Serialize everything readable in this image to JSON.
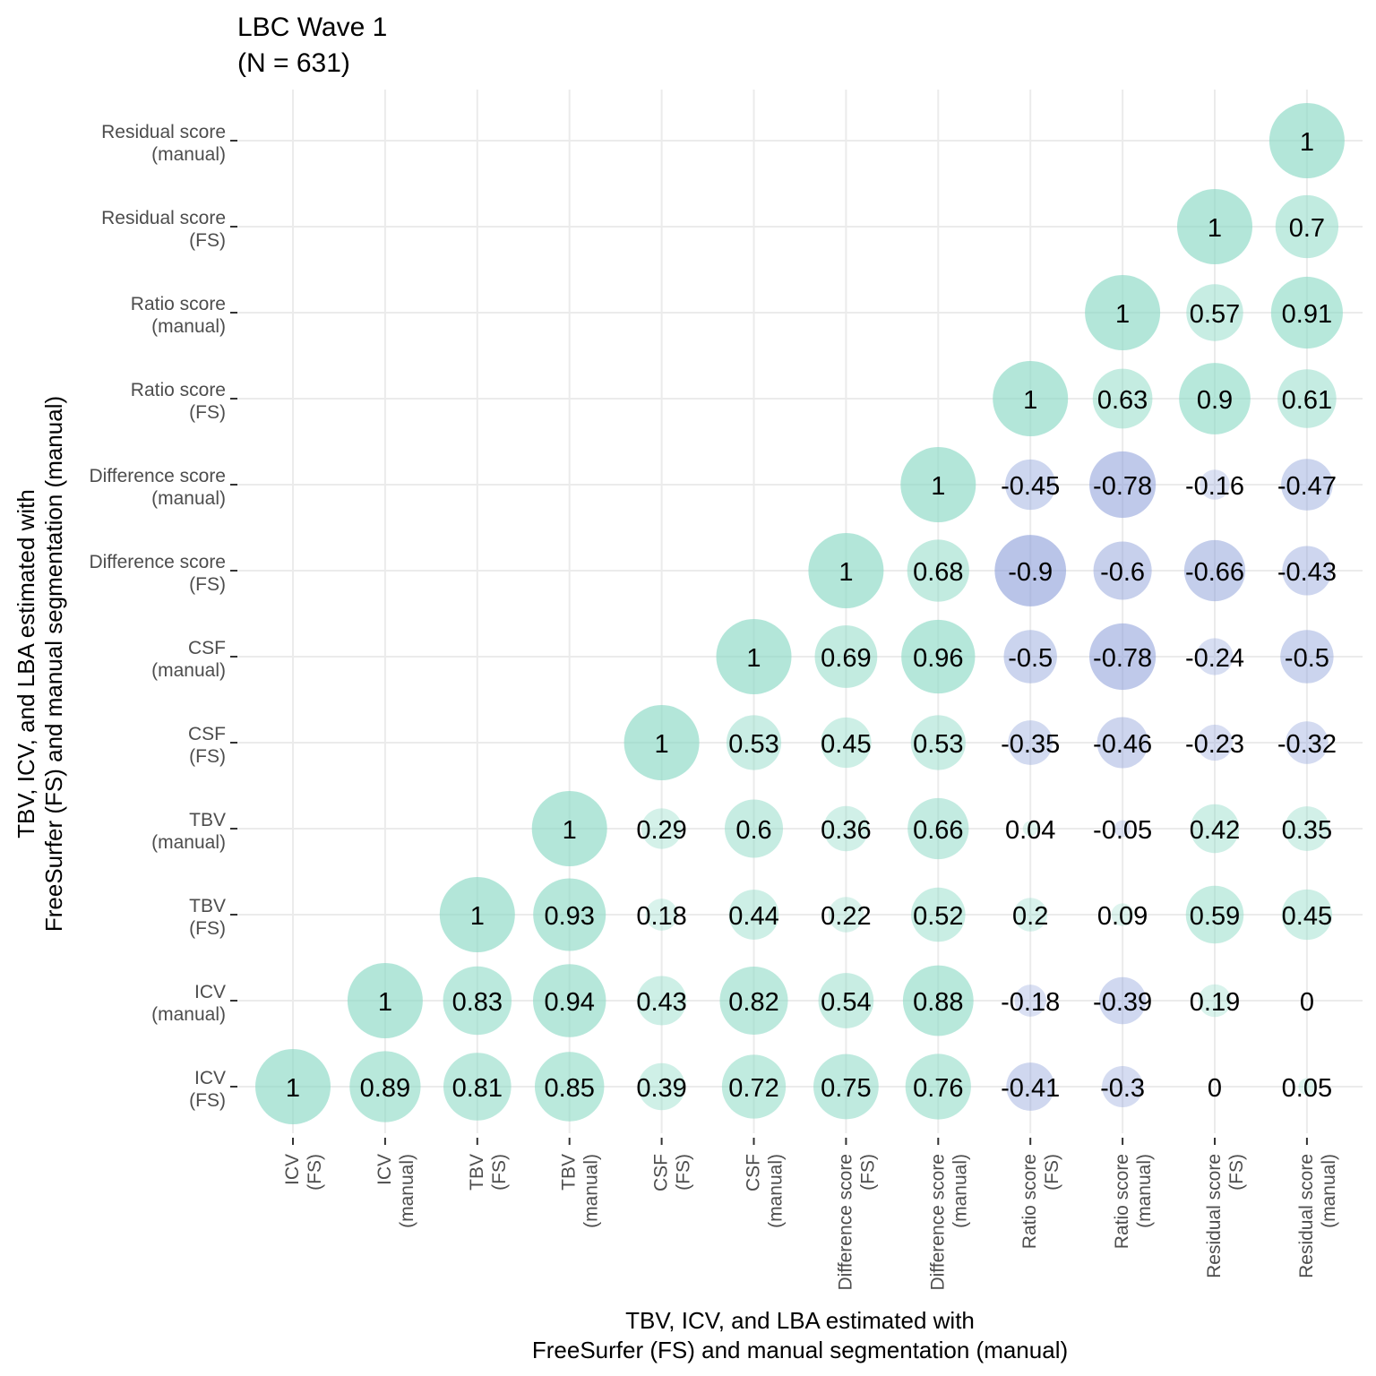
{
  "chart_data": {
    "type": "correlation-bubble-matrix",
    "title_lines": [
      "LBC Wave 1",
      "(N = 631)"
    ],
    "xlabel_lines": [
      "TBV, ICV, and LBA estimated with",
      "FreeSurfer (FS) and manual segmentation (manual)"
    ],
    "ylabel_lines": [
      "TBV, ICV, and LBA estimated with",
      "FreeSurfer (FS) and manual segmentation (manual)"
    ],
    "variables": [
      [
        "ICV",
        "(FS)"
      ],
      [
        "ICV",
        "(manual)"
      ],
      [
        "TBV",
        "(FS)"
      ],
      [
        "TBV",
        "(manual)"
      ],
      [
        "CSF",
        "(FS)"
      ],
      [
        "CSF",
        "(manual)"
      ],
      [
        "Difference score",
        "(FS)"
      ],
      [
        "Difference score",
        "(manual)"
      ],
      [
        "Ratio score",
        "(FS)"
      ],
      [
        "Ratio score",
        "(manual)"
      ],
      [
        "Residual score",
        "(FS)"
      ],
      [
        "Residual score",
        "(manual)"
      ]
    ],
    "cells": [
      {
        "x": 0,
        "y": 0,
        "value": 1,
        "label": "1"
      },
      {
        "x": 1,
        "y": 0,
        "value": 0.89,
        "label": "0.89"
      },
      {
        "x": 2,
        "y": 0,
        "value": 0.81,
        "label": "0.81"
      },
      {
        "x": 3,
        "y": 0,
        "value": 0.85,
        "label": "0.85"
      },
      {
        "x": 4,
        "y": 0,
        "value": 0.39,
        "label": "0.39"
      },
      {
        "x": 5,
        "y": 0,
        "value": 0.72,
        "label": "0.72"
      },
      {
        "x": 6,
        "y": 0,
        "value": 0.75,
        "label": "0.75"
      },
      {
        "x": 7,
        "y": 0,
        "value": 0.76,
        "label": "0.76"
      },
      {
        "x": 8,
        "y": 0,
        "value": -0.41,
        "label": "-0.41"
      },
      {
        "x": 9,
        "y": 0,
        "value": -0.3,
        "label": "-0.3"
      },
      {
        "x": 10,
        "y": 0,
        "value": 0,
        "label": "0"
      },
      {
        "x": 11,
        "y": 0,
        "value": 0.05,
        "label": "0.05"
      },
      {
        "x": 1,
        "y": 1,
        "value": 1,
        "label": "1"
      },
      {
        "x": 2,
        "y": 1,
        "value": 0.83,
        "label": "0.83"
      },
      {
        "x": 3,
        "y": 1,
        "value": 0.94,
        "label": "0.94"
      },
      {
        "x": 4,
        "y": 1,
        "value": 0.43,
        "label": "0.43"
      },
      {
        "x": 5,
        "y": 1,
        "value": 0.82,
        "label": "0.82"
      },
      {
        "x": 6,
        "y": 1,
        "value": 0.54,
        "label": "0.54"
      },
      {
        "x": 7,
        "y": 1,
        "value": 0.88,
        "label": "0.88"
      },
      {
        "x": 8,
        "y": 1,
        "value": -0.18,
        "label": "-0.18"
      },
      {
        "x": 9,
        "y": 1,
        "value": -0.39,
        "label": "-0.39"
      },
      {
        "x": 10,
        "y": 1,
        "value": 0.19,
        "label": "0.19"
      },
      {
        "x": 11,
        "y": 1,
        "value": 0,
        "label": "0"
      },
      {
        "x": 2,
        "y": 2,
        "value": 1,
        "label": "1"
      },
      {
        "x": 3,
        "y": 2,
        "value": 0.93,
        "label": "0.93"
      },
      {
        "x": 4,
        "y": 2,
        "value": 0.18,
        "label": "0.18"
      },
      {
        "x": 5,
        "y": 2,
        "value": 0.44,
        "label": "0.44"
      },
      {
        "x": 6,
        "y": 2,
        "value": 0.22,
        "label": "0.22"
      },
      {
        "x": 7,
        "y": 2,
        "value": 0.52,
        "label": "0.52"
      },
      {
        "x": 8,
        "y": 2,
        "value": 0.2,
        "label": "0.2"
      },
      {
        "x": 9,
        "y": 2,
        "value": 0.09,
        "label": "0.09"
      },
      {
        "x": 10,
        "y": 2,
        "value": 0.59,
        "label": "0.59"
      },
      {
        "x": 11,
        "y": 2,
        "value": 0.45,
        "label": "0.45"
      },
      {
        "x": 3,
        "y": 3,
        "value": 1,
        "label": "1"
      },
      {
        "x": 4,
        "y": 3,
        "value": 0.29,
        "label": "0.29"
      },
      {
        "x": 5,
        "y": 3,
        "value": 0.6,
        "label": "0.6"
      },
      {
        "x": 6,
        "y": 3,
        "value": 0.36,
        "label": "0.36"
      },
      {
        "x": 7,
        "y": 3,
        "value": 0.66,
        "label": "0.66"
      },
      {
        "x": 8,
        "y": 3,
        "value": 0.04,
        "label": "0.04"
      },
      {
        "x": 9,
        "y": 3,
        "value": -0.05,
        "label": "-0.05"
      },
      {
        "x": 10,
        "y": 3,
        "value": 0.42,
        "label": "0.42"
      },
      {
        "x": 11,
        "y": 3,
        "value": 0.35,
        "label": "0.35"
      },
      {
        "x": 4,
        "y": 4,
        "value": 1,
        "label": "1"
      },
      {
        "x": 5,
        "y": 4,
        "value": 0.53,
        "label": "0.53"
      },
      {
        "x": 6,
        "y": 4,
        "value": 0.45,
        "label": "0.45"
      },
      {
        "x": 7,
        "y": 4,
        "value": 0.53,
        "label": "0.53"
      },
      {
        "x": 8,
        "y": 4,
        "value": -0.35,
        "label": "-0.35"
      },
      {
        "x": 9,
        "y": 4,
        "value": -0.46,
        "label": "-0.46"
      },
      {
        "x": 10,
        "y": 4,
        "value": -0.23,
        "label": "-0.23"
      },
      {
        "x": 11,
        "y": 4,
        "value": -0.32,
        "label": "-0.32"
      },
      {
        "x": 5,
        "y": 5,
        "value": 1,
        "label": "1"
      },
      {
        "x": 6,
        "y": 5,
        "value": 0.69,
        "label": "0.69"
      },
      {
        "x": 7,
        "y": 5,
        "value": 0.96,
        "label": "0.96"
      },
      {
        "x": 8,
        "y": 5,
        "value": -0.5,
        "label": "-0.5"
      },
      {
        "x": 9,
        "y": 5,
        "value": -0.78,
        "label": "-0.78"
      },
      {
        "x": 10,
        "y": 5,
        "value": -0.24,
        "label": "-0.24"
      },
      {
        "x": 11,
        "y": 5,
        "value": -0.5,
        "label": "-0.5"
      },
      {
        "x": 6,
        "y": 6,
        "value": 1,
        "label": "1"
      },
      {
        "x": 7,
        "y": 6,
        "value": 0.68,
        "label": "0.68"
      },
      {
        "x": 8,
        "y": 6,
        "value": -0.9,
        "label": "-0.9"
      },
      {
        "x": 9,
        "y": 6,
        "value": -0.6,
        "label": "-0.6"
      },
      {
        "x": 10,
        "y": 6,
        "value": -0.66,
        "label": "-0.66"
      },
      {
        "x": 11,
        "y": 6,
        "value": -0.43,
        "label": "-0.43"
      },
      {
        "x": 7,
        "y": 7,
        "value": 1,
        "label": "1"
      },
      {
        "x": 8,
        "y": 7,
        "value": -0.45,
        "label": "-0.45"
      },
      {
        "x": 9,
        "y": 7,
        "value": -0.78,
        "label": "-0.78"
      },
      {
        "x": 10,
        "y": 7,
        "value": -0.16,
        "label": "-0.16"
      },
      {
        "x": 11,
        "y": 7,
        "value": -0.47,
        "label": "-0.47"
      },
      {
        "x": 8,
        "y": 8,
        "value": 1,
        "label": "1"
      },
      {
        "x": 9,
        "y": 8,
        "value": 0.63,
        "label": "0.63"
      },
      {
        "x": 10,
        "y": 8,
        "value": 0.9,
        "label": "0.9"
      },
      {
        "x": 11,
        "y": 8,
        "value": 0.61,
        "label": "0.61"
      },
      {
        "x": 9,
        "y": 9,
        "value": 1,
        "label": "1"
      },
      {
        "x": 10,
        "y": 9,
        "value": 0.57,
        "label": "0.57"
      },
      {
        "x": 11,
        "y": 9,
        "value": 0.91,
        "label": "0.91"
      },
      {
        "x": 10,
        "y": 10,
        "value": 1,
        "label": "1"
      },
      {
        "x": 11,
        "y": 10,
        "value": 0.7,
        "label": "0.7"
      },
      {
        "x": 11,
        "y": 11,
        "value": 1,
        "label": "1"
      }
    ],
    "colors": {
      "positive": "#8ad9c4",
      "negative": "#8c9fd9",
      "grid": "#ebebeb",
      "tick": "#333333"
    },
    "grid": true,
    "legend": "none"
  }
}
